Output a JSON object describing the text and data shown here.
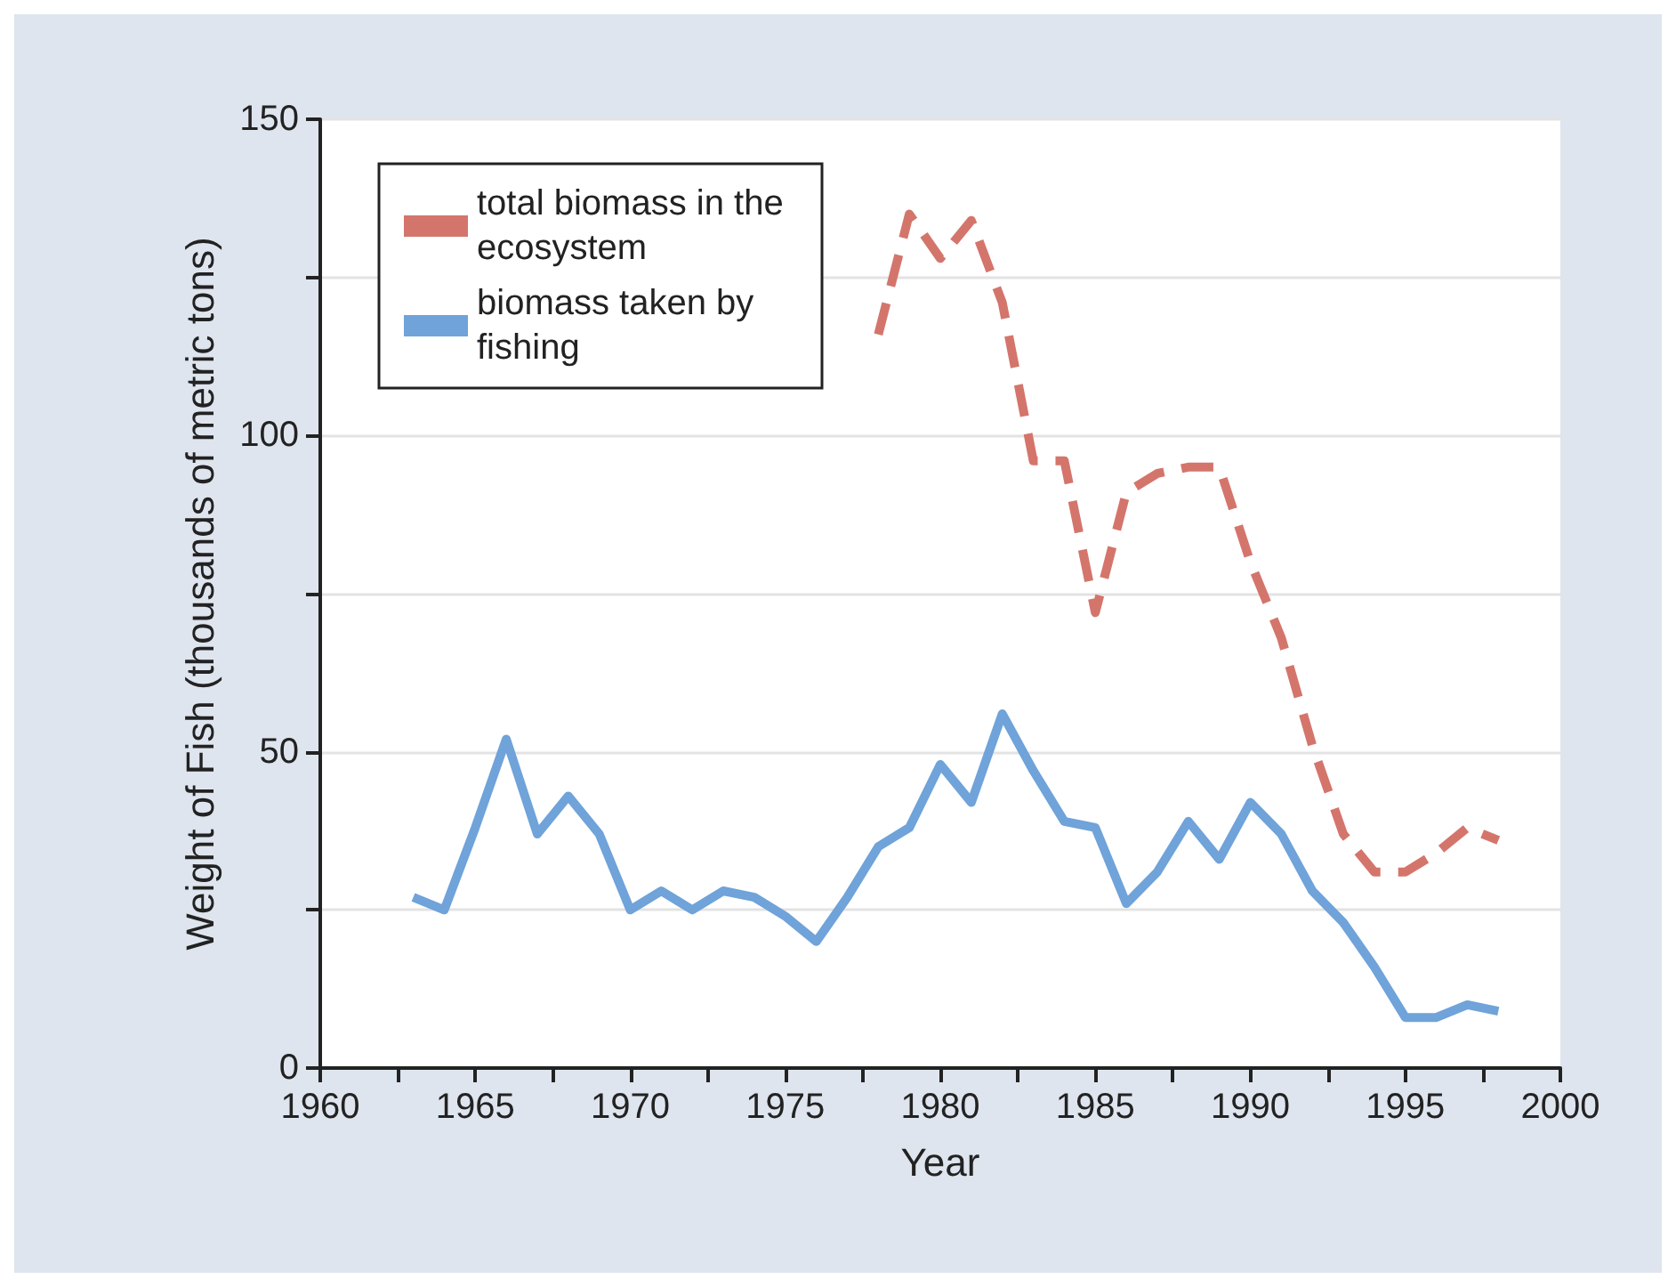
{
  "chart_data": {
    "type": "line",
    "xlabel": "Year",
    "ylabel": "Weight of Fish (thousands of metric tons)",
    "xlim": [
      1960,
      2000
    ],
    "xticks": [
      1960,
      {
        "value": 1962.5,
        "label": null
      },
      1965,
      {
        "value": 1967.5,
        "label": null
      },
      1970,
      {
        "value": 1972.5,
        "label": null
      },
      1975,
      {
        "value": 1977.5,
        "label": null
      },
      1980,
      {
        "value": 1982.5,
        "label": null
      },
      1985,
      {
        "value": 1987.5,
        "label": null
      },
      1990,
      {
        "value": 1992.5,
        "label": null
      },
      1995,
      {
        "value": 1997.5,
        "label": null
      },
      2000
    ],
    "ylim": [
      0,
      150
    ],
    "yticks": [
      0,
      {
        "value": 25,
        "label": null
      },
      50,
      {
        "value": 75,
        "label": null
      },
      100,
      {
        "value": 125,
        "label": null
      },
      150
    ],
    "grid": "y",
    "legend": "top left",
    "marker": "none",
    "series": [
      {
        "name": "total biomass in the ecosystem",
        "color": "#d4756c",
        "line_style": "dashed",
        "x": [
          1978,
          1979,
          1980,
          1981,
          1982,
          1983,
          1984,
          1985,
          1986,
          1987,
          1988,
          1989,
          1990,
          1991,
          1992,
          1993,
          1994,
          1995,
          1996,
          1997,
          1998
        ],
        "values": [
          116,
          135,
          128,
          134,
          121,
          96,
          96,
          72,
          91,
          94,
          95,
          95,
          80,
          68,
          51,
          37,
          31,
          31,
          34,
          38,
          36
        ]
      },
      {
        "name": "biomass taken by fishing",
        "color": "#6fa3d9",
        "line_style": "solid",
        "x": [
          1963,
          1964,
          1965,
          1966,
          1967,
          1968,
          1969,
          1970,
          1971,
          1972,
          1973,
          1974,
          1975,
          1976,
          1977,
          1978,
          1979,
          1980,
          1981,
          1982,
          1983,
          1984,
          1985,
          1986,
          1987,
          1988,
          1989,
          1990,
          1991,
          1992,
          1993,
          1994,
          1995,
          1996,
          1997,
          1998
        ],
        "values": [
          27,
          25,
          38,
          52,
          37,
          43,
          37,
          25,
          28,
          25,
          28,
          27,
          24,
          20,
          27,
          35,
          38,
          48,
          42,
          56,
          47,
          39,
          38,
          26,
          31,
          39,
          33,
          42,
          37,
          28,
          23,
          16,
          8,
          8,
          10,
          9
        ]
      }
    ]
  }
}
